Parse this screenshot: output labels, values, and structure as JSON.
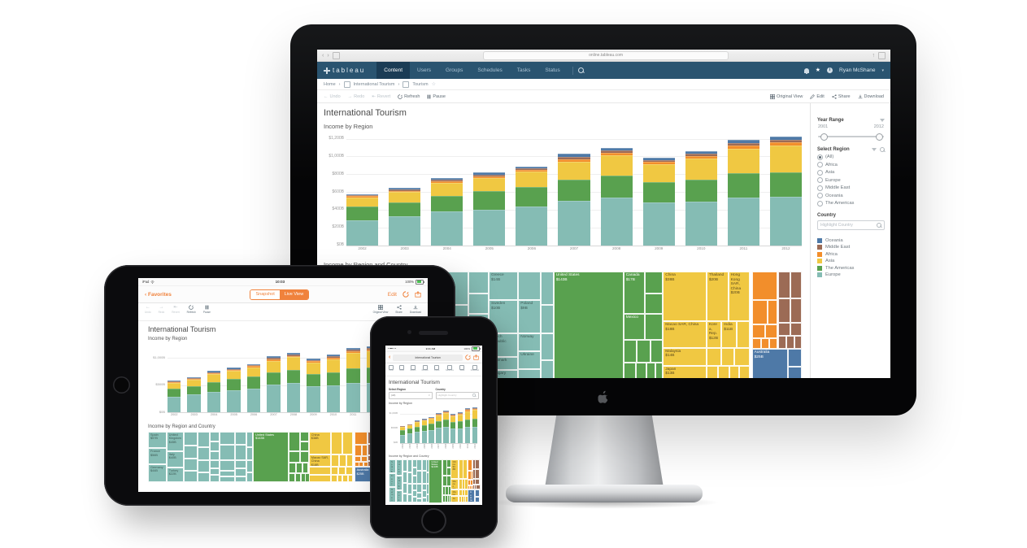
{
  "browser": {
    "url": "online.tableau.com"
  },
  "navbar": {
    "logo": "tableau",
    "tabs": [
      "Content",
      "Users",
      "Groups",
      "Schedules",
      "Tasks",
      "Status"
    ],
    "active_tab": "Content",
    "user": "Ryan McShane"
  },
  "breadcrumb": {
    "home": "Home",
    "project": "International Tourism",
    "view": "Tourism"
  },
  "toolbar": {
    "undo": "Undo",
    "redo": "Redo",
    "revert": "Revert",
    "refresh": "Refresh",
    "pause": "Pause",
    "original_view": "Original View",
    "edit": "Edit",
    "share": "Share",
    "download": "Download"
  },
  "page": {
    "title": "International Tourism",
    "bar_section_title": "Income by Region",
    "treemap_section_title": "Income by Region and Country"
  },
  "filters": {
    "year_range": {
      "label": "Year Range",
      "min": "2001",
      "max": "2012"
    },
    "select_region": {
      "label": "Select Region",
      "options": [
        "(All)",
        "Africa",
        "Asia",
        "Europe",
        "Middle East",
        "Oceania",
        "The Americas"
      ],
      "selected": "(All)"
    },
    "country": {
      "label": "Country",
      "placeholder": "Highlight Country"
    }
  },
  "legend": [
    {
      "label": "Oceania",
      "color": "#4E79A7"
    },
    {
      "label": "Middle East",
      "color": "#9C6B55"
    },
    {
      "label": "Africa",
      "color": "#F28E2B"
    },
    {
      "label": "Asia",
      "color": "#F0C842"
    },
    {
      "label": "The Americas",
      "color": "#59A14F"
    },
    {
      "label": "Europe",
      "color": "#85BCB4"
    }
  ],
  "chart_data": [
    {
      "type": "bar",
      "title": "Income by Region",
      "stacked": true,
      "categories": [
        "2002",
        "2003",
        "2004",
        "2005",
        "2006",
        "2007",
        "2008",
        "2009",
        "2010",
        "2011",
        "2012"
      ],
      "series": [
        {
          "name": "Europe",
          "color": "#85BCB4",
          "values": [
            280,
            325,
            380,
            400,
            440,
            505,
            535,
            480,
            490,
            540,
            545
          ]
        },
        {
          "name": "The Americas",
          "color": "#59A14F",
          "values": [
            160,
            155,
            180,
            210,
            215,
            235,
            250,
            230,
            250,
            270,
            280
          ]
        },
        {
          "name": "Asia",
          "color": "#F0C842",
          "values": [
            100,
            120,
            145,
            150,
            175,
            205,
            230,
            200,
            235,
            280,
            300
          ]
        },
        {
          "name": "Africa",
          "color": "#F28E2B",
          "values": [
            15,
            15,
            18,
            20,
            22,
            25,
            28,
            28,
            30,
            33,
            33
          ]
        },
        {
          "name": "Middle East",
          "color": "#9C6B55",
          "values": [
            10,
            12,
            15,
            16,
            14,
            30,
            27,
            22,
            25,
            32,
            27
          ]
        },
        {
          "name": "Oceania",
          "color": "#4E79A7",
          "values": [
            15,
            18,
            22,
            24,
            24,
            30,
            30,
            30,
            30,
            35,
            35
          ]
        }
      ],
      "ylabel": "Income ($B)",
      "ylim": [
        0,
        1260
      ],
      "yticks_desktop": [
        {
          "label": "$0B",
          "v": 0
        },
        {
          "label": "$200B",
          "v": 200
        },
        {
          "label": "$400B",
          "v": 400
        },
        {
          "label": "$600B",
          "v": 600
        },
        {
          "label": "$800B",
          "v": 800
        },
        {
          "label": "$1,000B",
          "v": 1000
        },
        {
          "label": "$1,200B",
          "v": 1200
        }
      ],
      "yticks_mobile": [
        {
          "label": "$0B",
          "v": 0
        },
        {
          "label": "$500B",
          "v": 500
        },
        {
          "label": "$1,000B",
          "v": 1000
        }
      ],
      "legend_position": "right"
    },
    {
      "type": "treemap",
      "title": "Income by Region and Country",
      "region_colors": {
        "Europe": "#85BCB4",
        "The Americas": "#59A14F",
        "Asia": "#F0C842",
        "Africa": "#F28E2B",
        "Middle East": "#9C6B55",
        "Oceania": "#4E79A7"
      },
      "region_label_colors": {
        "Europe": "#3E5B56",
        "The Americas": "#FFFFFF",
        "Asia": "#5A491E",
        "Africa": "#FFFFFF",
        "Middle East": "#FFFFFF",
        "Oceania": "#FFFFFF"
      },
      "cells": [
        [
          0,
          0,
          8,
          33,
          "Europe",
          "Spain",
          "$57B"
        ],
        [
          0,
          33,
          8,
          31,
          "Europe",
          "France",
          "$56B"
        ],
        [
          0,
          64,
          8,
          36,
          "Europe",
          "Germany",
          "$44B"
        ],
        [
          8,
          0,
          7.5,
          38,
          "Europe",
          "United Kingdom",
          "$45B"
        ],
        [
          8,
          38,
          7.5,
          33,
          "Europe",
          "Italy",
          "$40B"
        ],
        [
          8,
          71,
          7.5,
          29,
          "Europe",
          "Turkey",
          "$22B"
        ],
        [
          15.5,
          0,
          6,
          28,
          "Europe"
        ],
        [
          15.5,
          28,
          6,
          26,
          "Europe"
        ],
        [
          15.5,
          54,
          6,
          24,
          "Europe"
        ],
        [
          15.5,
          78,
          6,
          22,
          "Europe"
        ],
        [
          21.5,
          0,
          5,
          30,
          "Europe"
        ],
        [
          21.5,
          30,
          5,
          26,
          "Europe"
        ],
        [
          21.5,
          56,
          5,
          24,
          "Europe"
        ],
        [
          21.5,
          80,
          5,
          20,
          "Europe"
        ],
        [
          26.5,
          0,
          4.5,
          20,
          "Europe"
        ],
        [
          26.5,
          20,
          4.5,
          18,
          "Europe"
        ],
        [
          26.5,
          38,
          4.5,
          18,
          "Europe"
        ],
        [
          26.5,
          56,
          4.5,
          16,
          "Europe"
        ],
        [
          26.5,
          72,
          4.5,
          14,
          "Europe"
        ],
        [
          26.5,
          86,
          4.5,
          14,
          "Europe"
        ],
        [
          31,
          0,
          6.5,
          26,
          "Europe",
          "Greece",
          "$14B"
        ],
        [
          31,
          26,
          6.5,
          30,
          "Europe",
          "Sweden",
          "$10B"
        ],
        [
          31,
          56,
          6.5,
          21,
          "Europe",
          "Czech Republic",
          ""
        ],
        [
          31,
          77,
          6.5,
          12,
          "Europe",
          "Denmark",
          ""
        ],
        [
          31,
          89,
          6.5,
          11,
          "Europe",
          "Hungary",
          ""
        ],
        [
          37.5,
          0,
          5,
          26,
          "Europe"
        ],
        [
          37.5,
          26,
          5,
          30,
          "Europe",
          "Poland",
          "$9B"
        ],
        [
          37.5,
          56,
          5,
          16,
          "Europe",
          "Norway",
          ""
        ],
        [
          37.5,
          72,
          5,
          16,
          "Europe",
          "Ukraine",
          ""
        ],
        [
          37.5,
          88,
          5,
          12,
          "Europe"
        ],
        [
          42.5,
          0,
          2.8,
          30,
          "Europe"
        ],
        [
          42.5,
          30,
          2.8,
          26,
          "Europe"
        ],
        [
          42.5,
          56,
          2.8,
          24,
          "Europe"
        ],
        [
          42.5,
          80,
          2.8,
          20,
          "Europe"
        ],
        [
          45.3,
          0,
          15.4,
          100,
          "The Americas",
          "United States",
          "$143B"
        ],
        [
          60.7,
          0,
          4.8,
          38,
          "The Americas",
          "Canada",
          "$17B"
        ],
        [
          65.5,
          0,
          3.8,
          20,
          "The Americas"
        ],
        [
          65.5,
          20,
          3.8,
          18,
          "The Americas"
        ],
        [
          60.7,
          38,
          4.8,
          24,
          "The Americas",
          "Mexico",
          ""
        ],
        [
          65.5,
          38,
          3.8,
          24,
          "The Americas"
        ],
        [
          60.7,
          62,
          3,
          20,
          "The Americas"
        ],
        [
          63.7,
          62,
          2.9,
          20,
          "The Americas"
        ],
        [
          66.6,
          62,
          2.7,
          20,
          "The Americas"
        ],
        [
          60.7,
          82,
          2.7,
          18,
          "The Americas"
        ],
        [
          63.4,
          82,
          2.4,
          18,
          "The Americas"
        ],
        [
          65.8,
          82,
          2,
          18,
          "The Americas"
        ],
        [
          67.8,
          82,
          1.5,
          18,
          "The Americas"
        ],
        [
          69.4,
          0,
          9.6,
          45,
          "Asia",
          "China",
          "$38B"
        ],
        [
          79,
          0,
          4.8,
          45,
          "Asia",
          "Thailand",
          "$20B"
        ],
        [
          83.8,
          0,
          4.7,
          45,
          "Asia",
          "Hong Kong SAR, China",
          "$20B"
        ],
        [
          69.4,
          45,
          9.6,
          24,
          "Asia",
          "Macao SAR, China",
          "$18B"
        ],
        [
          79,
          45,
          3.3,
          24,
          "Asia",
          "Korea, Rep.",
          "$12B"
        ],
        [
          82.3,
          45,
          3.3,
          24,
          "Asia",
          "India",
          "$11B"
        ],
        [
          85.6,
          45,
          2.9,
          24,
          "Asia"
        ],
        [
          69.4,
          69,
          9.6,
          16,
          "Asia",
          "Malaysia",
          "$14B"
        ],
        [
          69.4,
          85,
          9.6,
          15,
          "Asia",
          "Japan",
          "$13B"
        ],
        [
          79,
          69,
          3.2,
          16,
          "Asia"
        ],
        [
          82.2,
          69,
          2.9,
          16,
          "Asia"
        ],
        [
          85.1,
          69,
          3.4,
          16,
          "Asia"
        ],
        [
          79,
          85,
          2.6,
          15,
          "Asia"
        ],
        [
          81.6,
          85,
          2.4,
          15,
          "Asia"
        ],
        [
          84,
          85,
          2.2,
          15,
          "Asia"
        ],
        [
          86.2,
          85,
          2.3,
          15,
          "Asia"
        ],
        [
          89,
          0,
          5.6,
          26,
          "Africa"
        ],
        [
          89,
          26,
          3.4,
          22,
          "Africa"
        ],
        [
          92.4,
          26,
          2.2,
          22,
          "Africa"
        ],
        [
          89,
          48,
          2.9,
          12,
          "Africa"
        ],
        [
          91.9,
          48,
          2.7,
          12,
          "Africa"
        ],
        [
          89,
          60,
          2,
          10,
          "Africa"
        ],
        [
          91,
          60,
          1.9,
          10,
          "Africa"
        ],
        [
          92.9,
          60,
          1.7,
          10,
          "Africa"
        ],
        [
          94.8,
          0,
          2.7,
          24,
          "Middle East"
        ],
        [
          97.5,
          0,
          2.5,
          24,
          "Middle East"
        ],
        [
          94.8,
          24,
          2.7,
          22,
          "Middle East"
        ],
        [
          97.5,
          24,
          2.5,
          22,
          "Middle East"
        ],
        [
          94.8,
          46,
          2.7,
          12,
          "Middle East"
        ],
        [
          97.5,
          46,
          2.5,
          12,
          "Middle East"
        ],
        [
          94.8,
          58,
          1.8,
          12,
          "Middle East"
        ],
        [
          96.6,
          58,
          1.7,
          12,
          "Middle East"
        ],
        [
          98.3,
          58,
          1.7,
          12,
          "Middle East"
        ],
        [
          89,
          70,
          7.9,
          30,
          "Oceania",
          "Australia",
          "$25B"
        ],
        [
          96.9,
          70,
          3.1,
          16,
          "Oceania"
        ],
        [
          96.9,
          86,
          3.1,
          14,
          "Oceania"
        ]
      ]
    }
  ],
  "ipad": {
    "status": {
      "left": "iPad",
      "time": "10:03",
      "battery": "100%"
    },
    "nav": {
      "back": "Favorites",
      "segment_snapshot": "Snapshot",
      "segment_live": "Live View",
      "edit": "Edit"
    },
    "toolbar": {
      "undo": "Undo",
      "redo": "Redo",
      "revert": "Revert",
      "refresh": "Refresh",
      "pause": "Pause",
      "original_view": "Original View",
      "share": "Share",
      "download": "Download"
    }
  },
  "iphone": {
    "status": {
      "time": "9:41 AM",
      "battery": "100%"
    },
    "nav_title": "International Tourism",
    "toolbar_labels": [
      "Undo",
      "Redo",
      "Revert",
      "Refresh",
      "Pause",
      "Subscribe",
      "Share",
      "Download"
    ]
  }
}
